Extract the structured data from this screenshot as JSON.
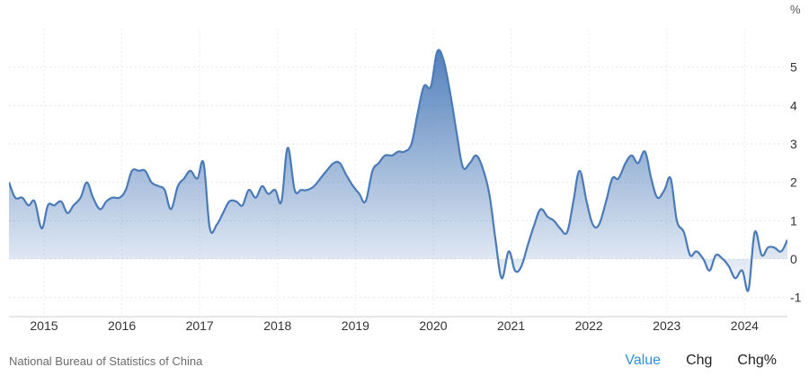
{
  "source": "National Bureau of Statistics of China",
  "tabs": [
    {
      "label": "Value",
      "active": true
    },
    {
      "label": "Chg",
      "active": false
    },
    {
      "label": "Chg%",
      "active": false
    }
  ],
  "chart_data": {
    "type": "area",
    "unit": "%",
    "ylim": [
      -1.5,
      6
    ],
    "yticks": [
      5,
      4,
      3,
      2,
      1,
      0,
      -1
    ],
    "xlim": [
      2014.55,
      2024.55
    ],
    "xticks": [
      "2015",
      "2016",
      "2017",
      "2018",
      "2019",
      "2020",
      "2021",
      "2022",
      "2023",
      "2024"
    ],
    "grid": true,
    "colors": {
      "line": "#4a7ab8",
      "fill_top": "#4a7ab8",
      "fill_bottom": "#ffffff"
    },
    "series": [
      {
        "x": [
          2014.55,
          2014.63,
          2014.72,
          2014.8,
          2014.88,
          2014.97,
          2015.05,
          2015.13,
          2015.22,
          2015.3,
          2015.38,
          2015.47,
          2015.55,
          2015.63,
          2015.72,
          2015.8,
          2015.88,
          2015.97,
          2016.05,
          2016.13,
          2016.22,
          2016.3,
          2016.38,
          2016.47,
          2016.55,
          2016.63,
          2016.72,
          2016.8,
          2016.88,
          2016.97,
          2017.05,
          2017.13,
          2017.22,
          2017.3,
          2017.38,
          2017.47,
          2017.55,
          2017.63,
          2017.72,
          2017.8,
          2017.88,
          2017.97,
          2018.05,
          2018.13,
          2018.22,
          2018.3,
          2018.38,
          2018.47,
          2018.55,
          2018.63,
          2018.72,
          2018.8,
          2018.88,
          2018.97,
          2019.05,
          2019.13,
          2019.22,
          2019.3,
          2019.38,
          2019.47,
          2019.55,
          2019.63,
          2019.72,
          2019.8,
          2019.88,
          2019.97,
          2020.05,
          2020.13,
          2020.22,
          2020.3,
          2020.38,
          2020.47,
          2020.55,
          2020.63,
          2020.72,
          2020.8,
          2020.88,
          2020.97,
          2021.05,
          2021.13,
          2021.22,
          2021.3,
          2021.38,
          2021.47,
          2021.55,
          2021.63,
          2021.72,
          2021.8,
          2021.88,
          2021.97,
          2022.05,
          2022.13,
          2022.22,
          2022.3,
          2022.38,
          2022.47,
          2022.55,
          2022.63,
          2022.72,
          2022.8,
          2022.88,
          2022.97,
          2023.05,
          2023.13,
          2023.22,
          2023.3,
          2023.38,
          2023.47,
          2023.55,
          2023.63,
          2023.72,
          2023.8,
          2023.88,
          2023.97,
          2024.05,
          2024.13,
          2024.22,
          2024.3,
          2024.38,
          2024.47,
          2024.55
        ],
        "values": [
          2.0,
          1.6,
          1.6,
          1.4,
          1.5,
          0.8,
          1.4,
          1.4,
          1.5,
          1.2,
          1.4,
          1.6,
          2.0,
          1.6,
          1.3,
          1.5,
          1.6,
          1.6,
          1.8,
          2.3,
          2.3,
          2.3,
          2.0,
          1.9,
          1.8,
          1.3,
          1.9,
          2.1,
          2.3,
          2.1,
          2.5,
          0.8,
          0.9,
          1.2,
          1.5,
          1.5,
          1.4,
          1.8,
          1.6,
          1.9,
          1.7,
          1.8,
          1.5,
          2.9,
          1.8,
          1.8,
          1.8,
          1.9,
          2.1,
          2.3,
          2.5,
          2.5,
          2.2,
          1.9,
          1.7,
          1.5,
          2.3,
          2.5,
          2.7,
          2.7,
          2.8,
          2.8,
          3.0,
          3.8,
          4.5,
          4.5,
          5.4,
          5.2,
          4.3,
          3.3,
          2.4,
          2.5,
          2.7,
          2.4,
          1.7,
          0.5,
          -0.5,
          0.2,
          -0.3,
          -0.2,
          0.4,
          0.9,
          1.3,
          1.1,
          1.0,
          0.8,
          0.7,
          1.5,
          2.3,
          1.5,
          0.9,
          0.9,
          1.5,
          2.1,
          2.1,
          2.5,
          2.7,
          2.5,
          2.8,
          2.1,
          1.6,
          1.8,
          2.1,
          1.0,
          0.7,
          0.1,
          0.2,
          0.0,
          -0.3,
          0.1,
          0.0,
          -0.2,
          -0.5,
          -0.3,
          -0.8,
          0.7,
          0.1,
          0.3,
          0.3,
          0.2,
          0.5
        ]
      }
    ]
  }
}
